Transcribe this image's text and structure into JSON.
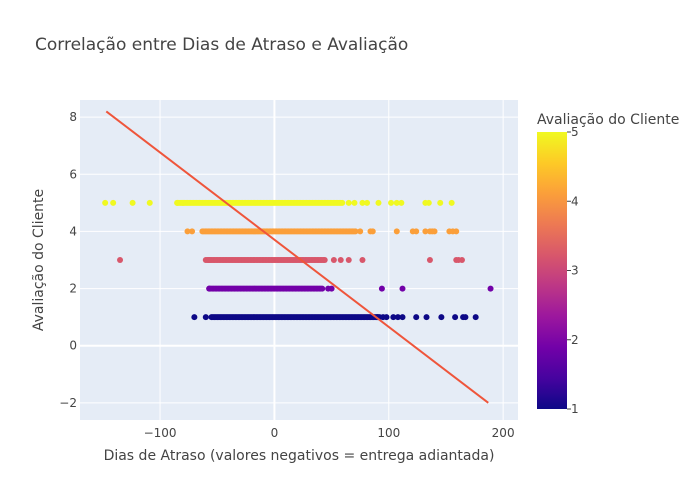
{
  "chart_data": {
    "type": "scatter",
    "title": "Correlação entre Dias de Atraso e Avaliação",
    "xlabel": "Dias de Atraso (valores negativos = entrega adiantada)",
    "ylabel": "Avaliação do Cliente",
    "xlim": [
      -170,
      213
    ],
    "ylim": [
      -2.6,
      8.6
    ],
    "x_ticks": [
      -100,
      0,
      100,
      200
    ],
    "x_tick_labels": [
      "−100",
      "0",
      "100",
      "200"
    ],
    "y_ticks": [
      -2,
      0,
      2,
      4,
      6,
      8
    ],
    "y_tick_labels": [
      "−2",
      "0",
      "2",
      "4",
      "6",
      "8"
    ],
    "grid": true,
    "colorbar": {
      "title": "Avaliação do Cliente",
      "range": [
        1,
        5
      ],
      "ticks": [
        1,
        2,
        3,
        4,
        5
      ],
      "tick_labels": [
        "1",
        "2",
        "3",
        "4",
        "5"
      ],
      "colorscale": [
        "#0d0887",
        "#46039f",
        "#7201a8",
        "#9c179e",
        "#bd3786",
        "#d8576b",
        "#ed7953",
        "#fb9f3a",
        "#fdca26",
        "#f0f921"
      ]
    },
    "trendline": {
      "x": [
        -147,
        187
      ],
      "y": [
        8.2,
        -2.0
      ],
      "color": "#ef553b"
    },
    "series": [
      {
        "rating": 5,
        "dense_range": [
          -85,
          60
        ],
        "x": [
          -148,
          -141,
          -124,
          -109,
          -85,
          -80,
          65,
          70,
          77,
          81,
          91,
          102,
          107,
          111,
          132,
          135,
          145,
          155
        ]
      },
      {
        "rating": 4,
        "dense_range": [
          -63,
          72
        ],
        "x": [
          -76,
          -72,
          75,
          84,
          86,
          107,
          121,
          124,
          132,
          136,
          138,
          140,
          153,
          156,
          159
        ]
      },
      {
        "rating": 3,
        "dense_range": [
          -60,
          45
        ],
        "x": [
          -135,
          -57,
          52,
          58,
          65,
          77,
          136,
          159,
          161,
          164
        ]
      },
      {
        "rating": 2,
        "dense_range": [
          -57,
          43
        ],
        "x": [
          -57,
          47,
          50,
          94,
          112,
          189
        ]
      },
      {
        "rating": 1,
        "dense_range": [
          -55,
          92
        ],
        "x": [
          -70,
          -60,
          90,
          95,
          98,
          104,
          108,
          112,
          124,
          133,
          146,
          158,
          165,
          167,
          176
        ]
      }
    ]
  }
}
